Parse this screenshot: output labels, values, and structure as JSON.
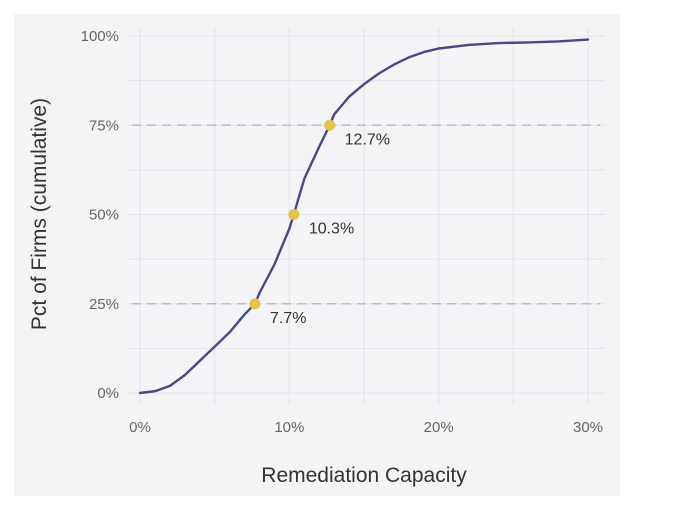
{
  "chart_data": {
    "type": "line",
    "title": "",
    "xlabel": "Remediation Capacity",
    "ylabel": "Pct of Firms (cumulative)",
    "xlim": [
      0,
      30
    ],
    "ylim": [
      0,
      100
    ],
    "x_ticks": [
      "0%",
      "10%",
      "20%",
      "30%"
    ],
    "y_ticks": [
      "0%",
      "25%",
      "50%",
      "75%",
      "100%"
    ],
    "grid": true,
    "reference_lines": [
      25,
      75
    ],
    "colors": {
      "line": "#4a4788",
      "marker": "#e5c24a",
      "background": "#f4f4f6",
      "grid": "#e2e2ea",
      "ref_line": "#bdbdc8"
    },
    "series": [
      {
        "x": [
          0,
          1,
          2,
          3,
          4,
          5,
          6,
          7,
          7.7,
          8,
          9,
          10,
          10.3,
          11,
          12,
          12.7,
          13,
          14,
          15,
          16,
          17,
          18,
          19,
          20,
          22,
          24,
          26,
          28,
          30
        ],
        "y": [
          0,
          0.5,
          2,
          5,
          9,
          13,
          17,
          22,
          25,
          28,
          36,
          46,
          50,
          60,
          69,
          75,
          78,
          83,
          86.5,
          89.5,
          92,
          94,
          95.5,
          96.5,
          97.5,
          98,
          98.2,
          98.5,
          99
        ]
      }
    ],
    "annotations": [
      {
        "x": 7.7,
        "y": 25,
        "label": "7.7%"
      },
      {
        "x": 10.3,
        "y": 50,
        "label": "10.3%"
      },
      {
        "x": 12.7,
        "y": 75,
        "label": "12.7%"
      }
    ]
  }
}
